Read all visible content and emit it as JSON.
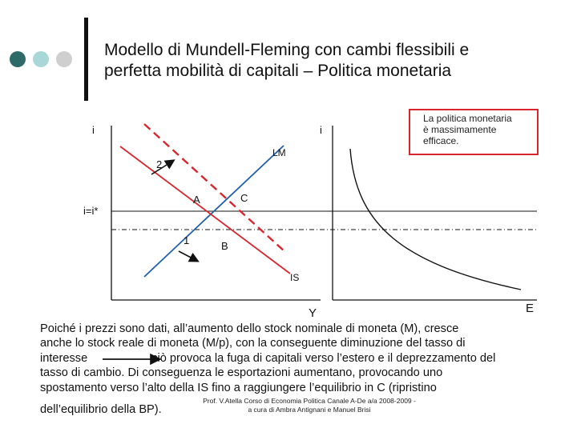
{
  "title": {
    "line1": "Modello di Mundell-Fleming con cambi flessibili e",
    "line2": "perfetta mobilità di capitali – Politica monetaria"
  },
  "decor": {
    "dot_colors": [
      "#2e6b68",
      "#a9d7d7",
      "#cfcfcf"
    ]
  },
  "note": {
    "line1": "La politica monetaria",
    "line2": "è massimamente",
    "line3": "efficace."
  },
  "left_graph": {
    "y_axis_label": "i",
    "x_axis_label": "Y",
    "rate_label": "i=i*",
    "lm_label": "LM",
    "is_label": "IS",
    "point_a": "A",
    "point_b": "B",
    "point_c": "C",
    "marker_1": "1",
    "marker_2": "2"
  },
  "right_graph": {
    "y_axis_label": "i",
    "x_axis_label": "E"
  },
  "paragraph": {
    "line1": "Poiché i prezzi sono dati, all’aumento dello stock nominale di moneta (M), cresce",
    "line2": "anche lo stock reale di moneta (M/p), con la conseguente diminuzione del tasso di",
    "line3a": "interesse",
    "line3b": "ciò provoca la fuga di capitali verso l’estero e il deprezzamento del",
    "line4": "tasso di cambio. Di conseguenza le esportazioni aumentano, provocando uno",
    "line5": "spostamento verso l’alto della IS fino a raggiungere l’equilibrio in C (ripristino",
    "line6": "dell’equilibrio della BP)."
  },
  "footer": {
    "line1": "Prof. V.Atella Corso di Economia Politica Canale A-De a/a 2008-2009 -",
    "line2": "a cura di Ambra Antignani e Manuel Brisi"
  },
  "colors": {
    "red": "#d9262e",
    "blue": "#1f5fa8",
    "axis": "#111111"
  }
}
